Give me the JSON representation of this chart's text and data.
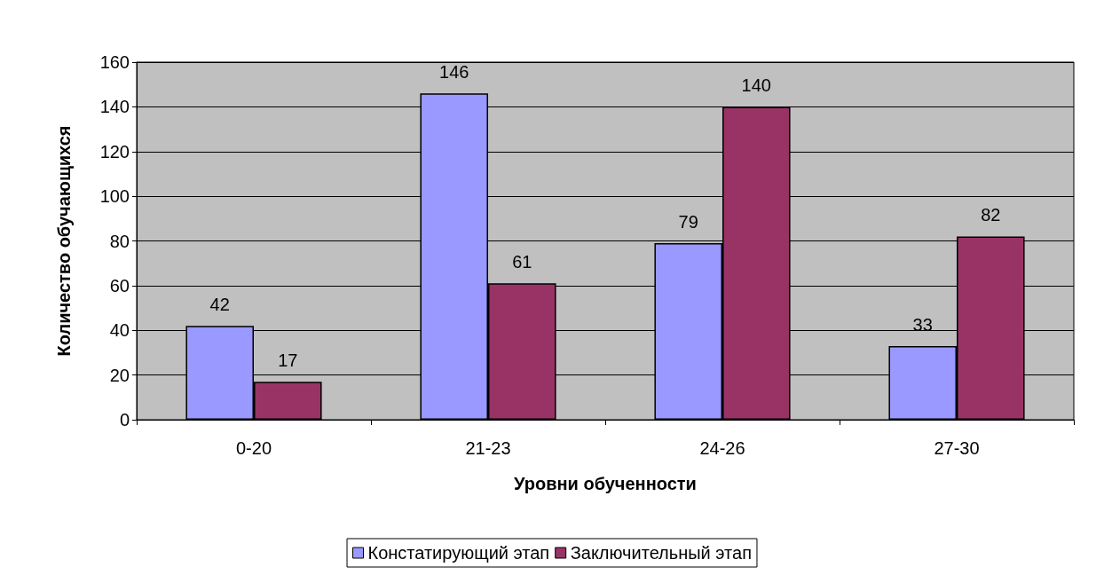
{
  "chart_data": {
    "type": "bar",
    "xlabel": "Уровни обученности",
    "ylabel": "Количество обучающихся",
    "categories": [
      "0-20",
      "21-23",
      "24-26",
      "27-30"
    ],
    "series": [
      {
        "name": "Констатирующий этап",
        "color": "#9999ff",
        "values": [
          42,
          146,
          79,
          33
        ]
      },
      {
        "name": "Заключительный этап",
        "color": "#993366",
        "values": [
          17,
          61,
          140,
          82
        ]
      }
    ],
    "ylim": [
      0,
      160
    ],
    "yticks": [
      0,
      20,
      40,
      60,
      80,
      100,
      120,
      140,
      160
    ],
    "grid": "y",
    "legend": "bottom",
    "data_labels": true
  }
}
